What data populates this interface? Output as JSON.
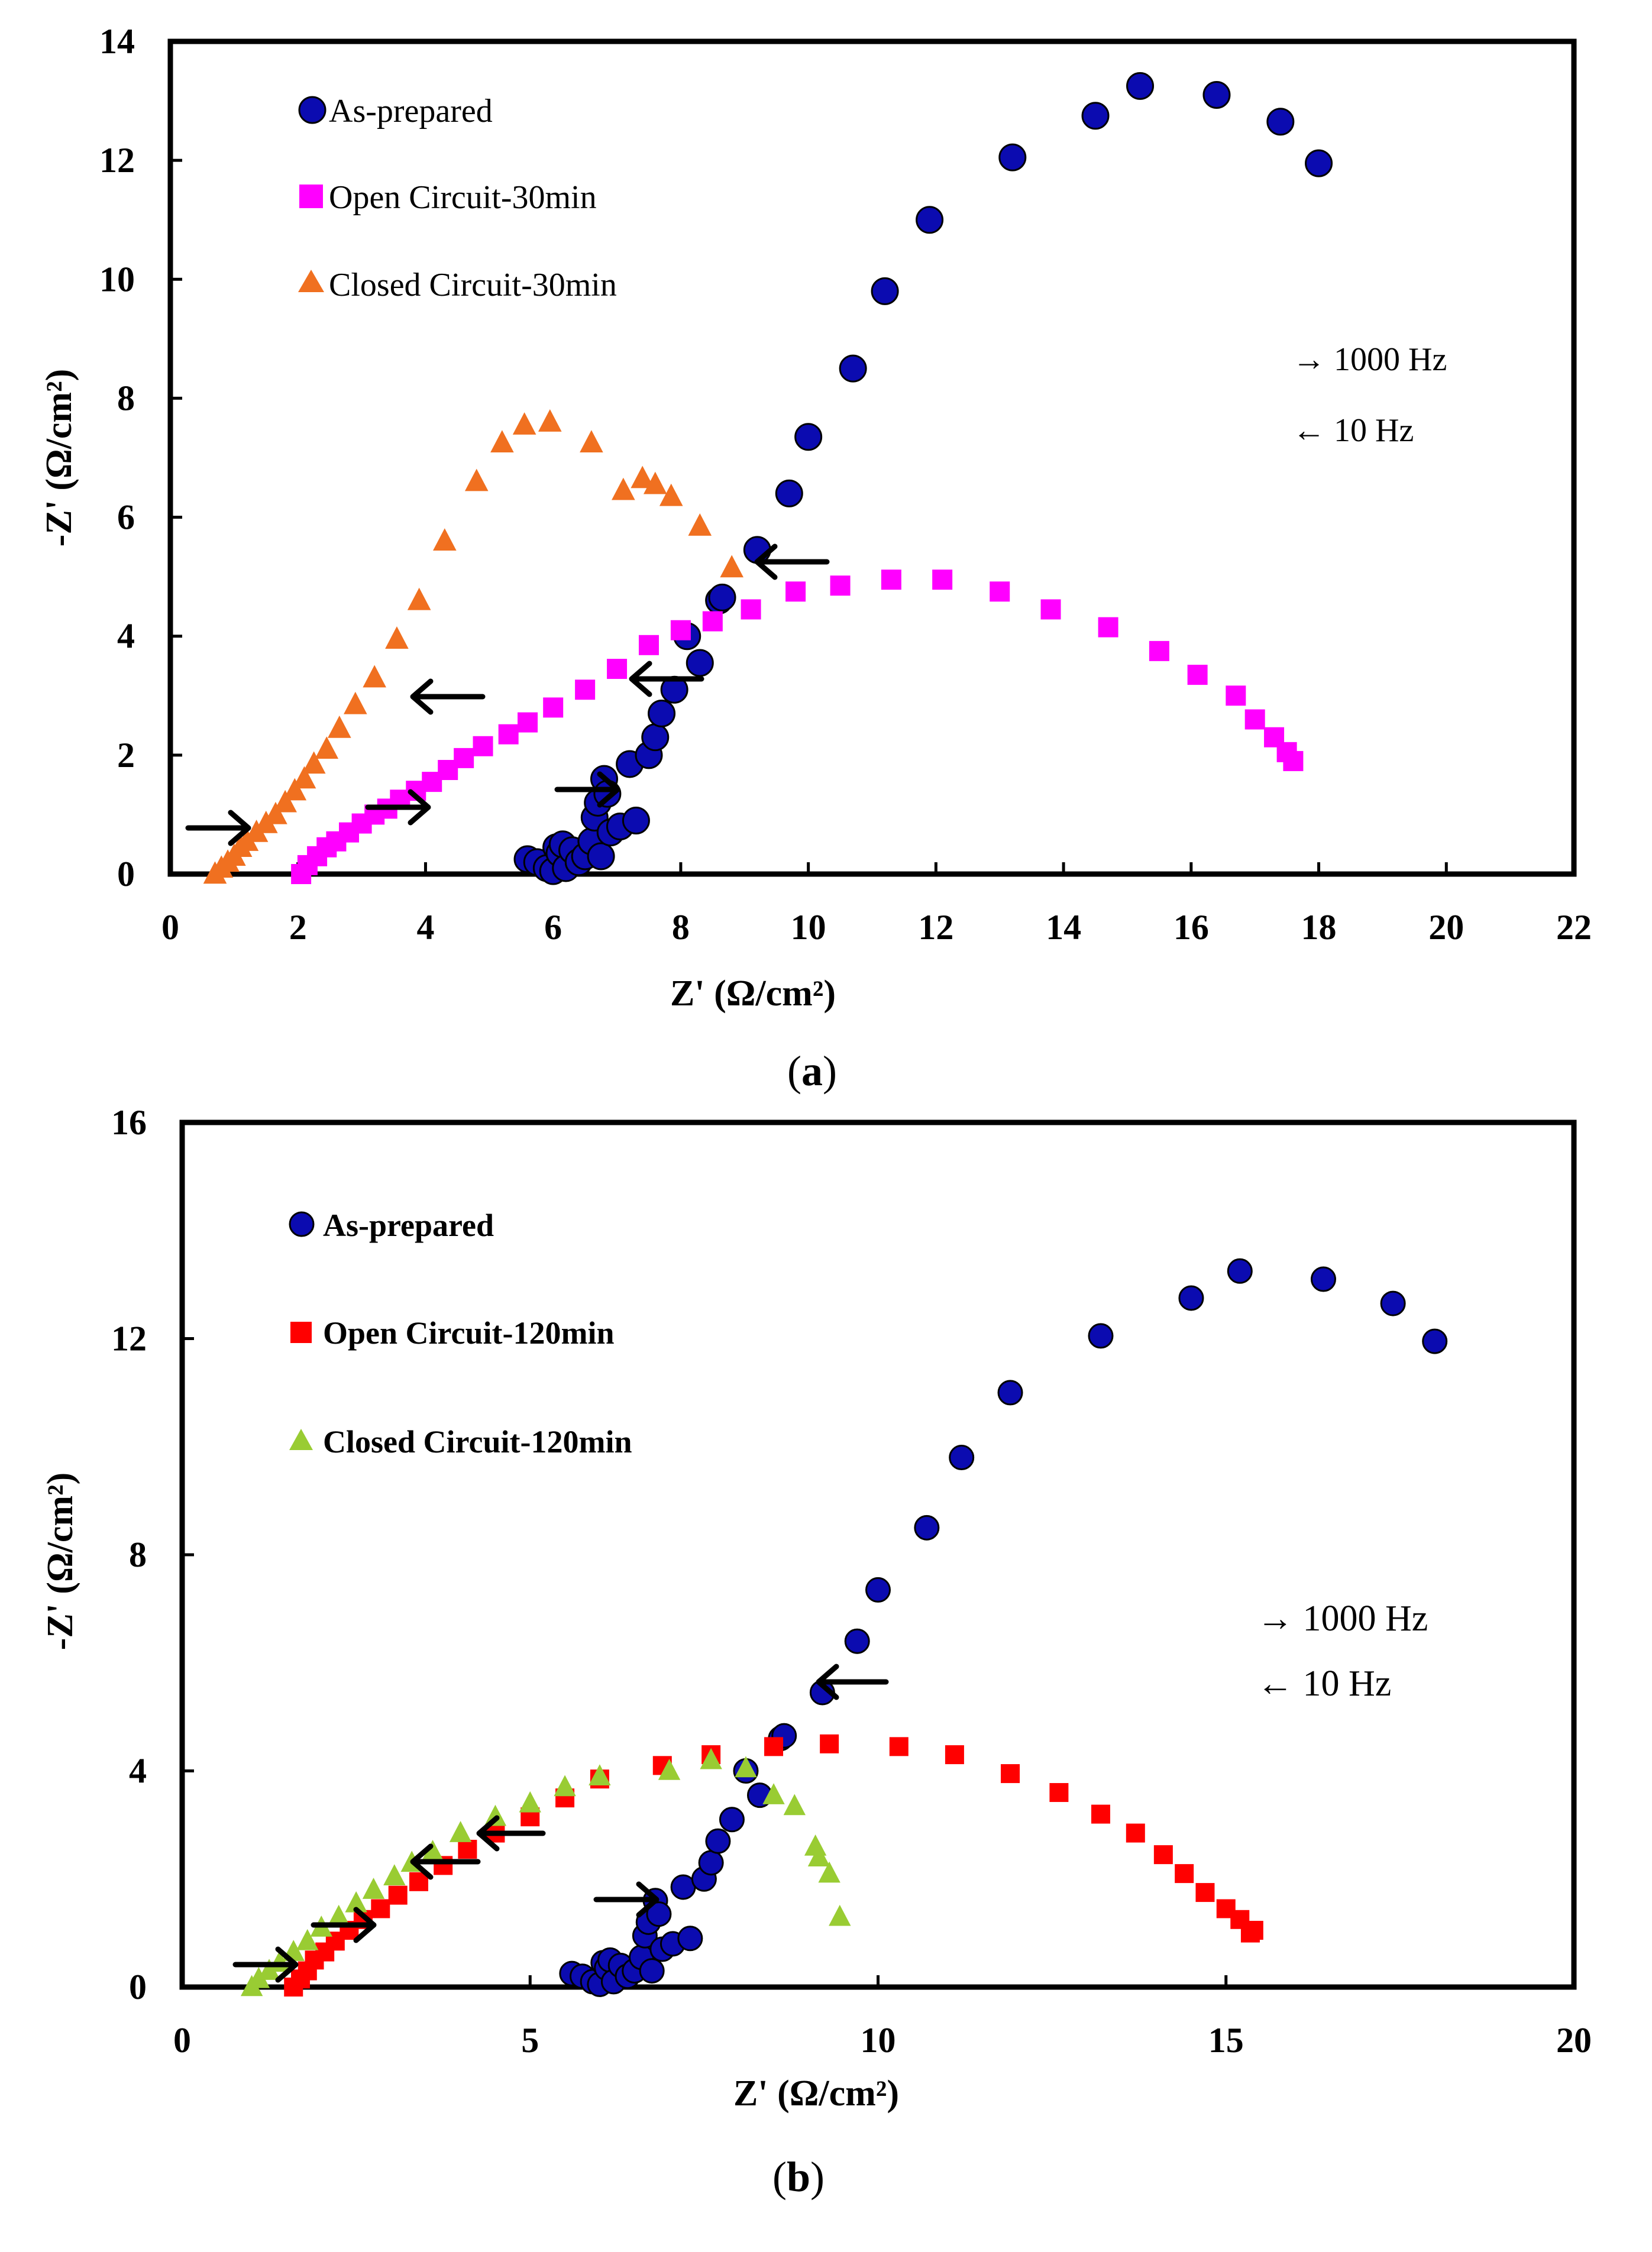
{
  "chart_data": [
    {
      "type": "scatter",
      "panel_label": {
        "open": "(",
        "letter": "a",
        "close": ")"
      },
      "title": "",
      "xlabel": "Z' (Ω/cm²)",
      "ylabel": "-Z' (Ω/cm²)",
      "xlim": [
        0,
        22
      ],
      "ylim": [
        0,
        14
      ],
      "xticks": [
        "0",
        "2",
        "4",
        "6",
        "8",
        "10",
        "12",
        "14",
        "16",
        "18",
        "20",
        "22"
      ],
      "yticks": [
        "0",
        "2",
        "4",
        "6",
        "8",
        "10",
        "12",
        "14"
      ],
      "legend": "top-left",
      "annotations": [
        "→ 1000 Hz",
        "← 10 Hz"
      ],
      "series": [
        {
          "name": "As-prepared",
          "marker": "circle",
          "color": "#0b0bb0",
          "x": [
            5.6,
            5.75,
            5.9,
            6.0,
            6.05,
            6.1,
            6.15,
            6.2,
            6.3,
            6.4,
            6.5,
            6.6,
            6.65,
            6.7,
            6.75,
            6.8,
            6.85,
            6.9,
            7.05,
            7.2,
            7.3,
            7.5,
            7.6,
            7.7,
            7.9,
            8.1,
            8.3,
            8.6,
            8.65,
            9.2,
            9.7,
            10.0,
            10.7,
            11.2,
            11.9,
            13.2,
            14.5,
            15.2,
            16.4,
            17.4,
            18.0
          ],
          "y": [
            0.25,
            0.2,
            0.1,
            0.05,
            0.45,
            0.35,
            0.5,
            0.1,
            0.4,
            0.2,
            0.3,
            0.55,
            0.95,
            1.2,
            0.3,
            1.6,
            1.35,
            0.7,
            0.8,
            1.85,
            0.9,
            2.0,
            2.3,
            2.7,
            3.1,
            4.0,
            3.55,
            4.6,
            4.65,
            5.45,
            6.4,
            7.35,
            8.5,
            9.8,
            11.0,
            12.05,
            12.75,
            13.25,
            13.1,
            12.65,
            11.95
          ]
        },
        {
          "name": "Open Circuit-30min",
          "marker": "square",
          "color": "#ff00ff",
          "x": [
            2.05,
            2.15,
            2.3,
            2.45,
            2.6,
            2.8,
            3.0,
            3.2,
            3.4,
            3.6,
            3.85,
            4.1,
            4.35,
            4.6,
            4.9,
            5.3,
            5.6,
            6.0,
            6.5,
            7.0,
            7.5,
            8.0,
            8.5,
            9.1,
            9.8,
            10.5,
            11.3,
            12.1,
            13.0,
            13.8,
            14.7,
            15.5,
            16.1,
            16.7,
            17.0,
            17.3,
            17.5,
            17.6
          ],
          "y": [
            0.0,
            0.15,
            0.3,
            0.45,
            0.55,
            0.7,
            0.85,
            1.0,
            1.1,
            1.25,
            1.4,
            1.55,
            1.75,
            1.95,
            2.15,
            2.35,
            2.55,
            2.8,
            3.1,
            3.45,
            3.85,
            4.1,
            4.25,
            4.45,
            4.75,
            4.85,
            4.95,
            4.95,
            4.75,
            4.45,
            4.15,
            3.75,
            3.35,
            3.0,
            2.6,
            2.3,
            2.05,
            1.9
          ]
        },
        {
          "name": "Closed Circuit-30min",
          "marker": "triangle",
          "color": "#f07020",
          "x": [
            0.7,
            0.8,
            0.9,
            1.0,
            1.1,
            1.2,
            1.35,
            1.5,
            1.65,
            1.8,
            1.95,
            2.1,
            2.25,
            2.45,
            2.65,
            2.9,
            3.2,
            3.55,
            3.9,
            4.3,
            4.8,
            5.2,
            5.55,
            5.95,
            6.6,
            7.1,
            7.4,
            7.6,
            7.85,
            8.3,
            8.8
          ],
          "y": [
            0.0,
            0.1,
            0.2,
            0.3,
            0.45,
            0.55,
            0.7,
            0.85,
            1.0,
            1.2,
            1.4,
            1.6,
            1.85,
            2.1,
            2.45,
            2.85,
            3.3,
            3.95,
            4.6,
            5.6,
            6.6,
            7.25,
            7.55,
            7.6,
            7.25,
            6.45,
            6.65,
            6.55,
            6.35,
            5.85,
            5.15
          ]
        }
      ]
    },
    {
      "type": "scatter",
      "panel_label": {
        "open": "(",
        "letter": "b",
        "close": ")"
      },
      "title": "",
      "xlabel": "Z' (Ω/cm²)",
      "ylabel": "-Z' (Ω/cm²)",
      "xlim": [
        0,
        20
      ],
      "ylim": [
        0,
        16
      ],
      "xticks": [
        "0",
        "5",
        "10",
        "15",
        "20"
      ],
      "yticks": [
        "0",
        "4",
        "8",
        "12",
        "16"
      ],
      "legend": "top-left",
      "annotations": [
        "→ 1000 Hz",
        "← 10 Hz"
      ],
      "series": [
        {
          "name": "As-prepared",
          "marker": "circle",
          "color": "#0b0bb0",
          "x": [
            5.6,
            5.75,
            5.9,
            6.0,
            6.05,
            6.1,
            6.15,
            6.2,
            6.3,
            6.4,
            6.5,
            6.6,
            6.65,
            6.7,
            6.75,
            6.8,
            6.85,
            6.9,
            7.05,
            7.2,
            7.3,
            7.5,
            7.6,
            7.7,
            7.9,
            8.1,
            8.3,
            8.6,
            8.65,
            9.2,
            9.7,
            10.0,
            10.7,
            11.2,
            11.9,
            13.2,
            14.5,
            15.2,
            16.4,
            17.4,
            18.0
          ],
          "y": [
            0.25,
            0.2,
            0.1,
            0.05,
            0.45,
            0.35,
            0.5,
            0.1,
            0.4,
            0.2,
            0.3,
            0.55,
            0.95,
            1.2,
            0.3,
            1.6,
            1.35,
            0.7,
            0.8,
            1.85,
            0.9,
            2.0,
            2.3,
            2.7,
            3.1,
            4.0,
            3.55,
            4.6,
            4.65,
            5.45,
            6.4,
            7.35,
            8.5,
            9.8,
            11.0,
            12.05,
            12.75,
            13.25,
            13.1,
            12.65,
            11.95
          ]
        },
        {
          "name": "Open Circuit-120min",
          "marker": "square",
          "color": "#ff0000",
          "x": [
            1.6,
            1.7,
            1.8,
            1.9,
            2.05,
            2.2,
            2.4,
            2.6,
            2.85,
            3.1,
            3.4,
            3.75,
            4.1,
            4.5,
            5.0,
            5.5,
            6.0,
            6.9,
            7.6,
            8.5,
            9.3,
            10.3,
            11.1,
            11.9,
            12.6,
            13.2,
            13.7,
            14.1,
            14.4,
            14.7,
            15.0,
            15.2,
            15.4,
            15.35
          ],
          "y": [
            0.0,
            0.15,
            0.3,
            0.5,
            0.65,
            0.85,
            1.05,
            1.25,
            1.45,
            1.7,
            1.95,
            2.25,
            2.55,
            2.85,
            3.15,
            3.5,
            3.85,
            4.1,
            4.3,
            4.45,
            4.5,
            4.45,
            4.3,
            3.95,
            3.6,
            3.2,
            2.85,
            2.45,
            2.1,
            1.75,
            1.45,
            1.25,
            1.05,
            1.0
          ]
        },
        {
          "name": "Closed Circuit-120min",
          "marker": "triangle",
          "color": "#99cc33",
          "x": [
            1.0,
            1.1,
            1.25,
            1.4,
            1.6,
            1.8,
            2.0,
            2.25,
            2.5,
            2.75,
            3.05,
            3.3,
            3.6,
            4.0,
            4.5,
            5.0,
            5.5,
            6.0,
            7.0,
            7.6,
            8.1,
            8.5,
            8.8,
            9.1,
            9.15,
            9.3,
            9.45
          ],
          "y": [
            0.0,
            0.15,
            0.3,
            0.45,
            0.65,
            0.85,
            1.1,
            1.3,
            1.55,
            1.8,
            2.05,
            2.3,
            2.5,
            2.85,
            3.15,
            3.4,
            3.7,
            3.9,
            4.0,
            4.2,
            4.05,
            3.55,
            3.35,
            2.6,
            2.4,
            2.1,
            1.3
          ]
        }
      ]
    }
  ]
}
